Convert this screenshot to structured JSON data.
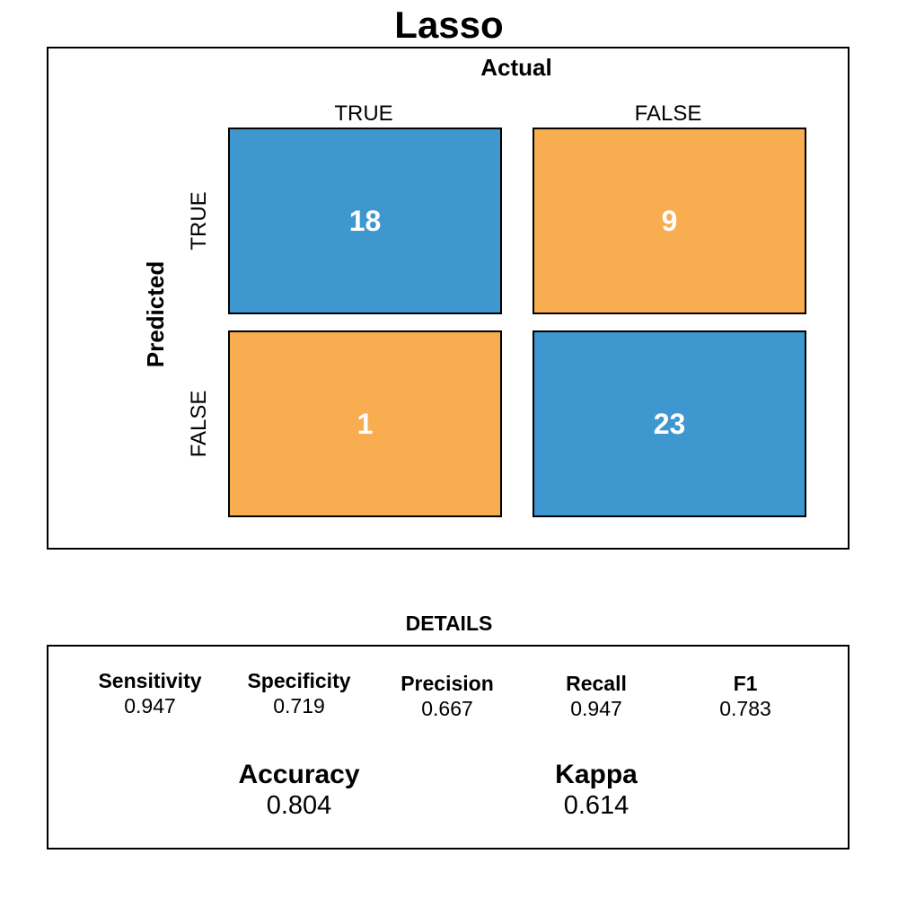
{
  "chart_data": {
    "type": "table",
    "title": "Lasso",
    "column_axis_label": "Actual",
    "row_axis_label": "Predicted",
    "columns": [
      "TRUE",
      "FALSE"
    ],
    "rows": [
      "TRUE",
      "FALSE"
    ],
    "matrix": [
      [
        18,
        9
      ],
      [
        1,
        23
      ]
    ],
    "colors": {
      "correct": "#3F97D0",
      "incorrect": "#F7AD50"
    },
    "details": {
      "title": "DETAILS",
      "metrics": [
        {
          "name": "Sensitivity",
          "value": "0.947"
        },
        {
          "name": "Specificity",
          "value": "0.719"
        },
        {
          "name": "Precision",
          "value": "0.667"
        },
        {
          "name": "Recall",
          "value": "0.947"
        },
        {
          "name": "F1",
          "value": "0.783"
        }
      ],
      "summary": [
        {
          "name": "Accuracy",
          "value": "0.804"
        },
        {
          "name": "Kappa",
          "value": "0.614"
        }
      ]
    }
  }
}
